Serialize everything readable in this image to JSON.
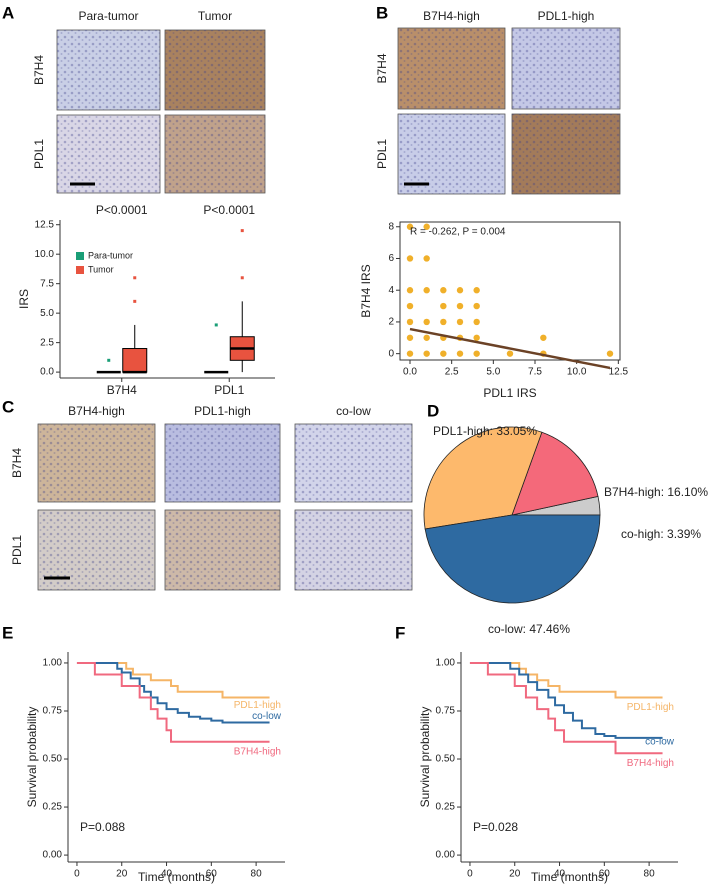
{
  "image_panels": [
    {
      "letter": "A",
      "columns": [
        "Para-tumor",
        "Tumor"
      ],
      "rows": [
        "B7H4",
        "PDL1"
      ]
    },
    {
      "letter": "B",
      "columns": [
        "B7H4-high",
        "PDL1-high"
      ],
      "rows": [
        "B7H4",
        "PDL1"
      ]
    },
    {
      "letter": "C",
      "columns": [
        "B7H4-high",
        "PDL1-high",
        "co-low"
      ],
      "rows": [
        "B7H4",
        "PDL1"
      ]
    }
  ],
  "chart_data": [
    {
      "type": "box",
      "y_label": "IRS",
      "annotations": [
        "P<0.0001",
        "P<0.0001"
      ],
      "categories": [
        "B7H4",
        "PDL1"
      ],
      "ylim": [
        -0.5,
        12.9
      ],
      "yticks": [
        {
          "value": 0,
          "label": "0.0"
        },
        2.5,
        {
          "value": 5,
          "label": "5.0"
        },
        7.5,
        {
          "value": 10,
          "label": "10.0"
        },
        12.5
      ],
      "series": [
        {
          "name": "Para-tumor",
          "color": "#1a9e77",
          "min": [
            0,
            0
          ],
          "q1": [
            0,
            0
          ],
          "median": [
            0,
            0
          ],
          "q3": [
            0,
            0
          ],
          "max": [
            0,
            0
          ],
          "outliers": [
            [
              1
            ],
            [
              4
            ]
          ]
        },
        {
          "name": "Tumor",
          "color": "#e8533f",
          "min": [
            0,
            0
          ],
          "q1": [
            0,
            1
          ],
          "median": [
            0,
            2
          ],
          "q3": [
            2,
            3
          ],
          "max": [
            4,
            6
          ],
          "outliers": [
            [
              6,
              8
            ],
            [
              8,
              12
            ]
          ]
        }
      ]
    },
    {
      "type": "scatter",
      "x_label": "PDL1 IRS",
      "y_label": "B7H4 IRS",
      "annotation": "R = -0.262,  P = 0.004",
      "color": "#f0b02a",
      "x": [
        0,
        1,
        0,
        1,
        0,
        1,
        2,
        3,
        4,
        0,
        2,
        3,
        4,
        0,
        1,
        2,
        3,
        4,
        0,
        1,
        2,
        3,
        4,
        8,
        0,
        1,
        2,
        3,
        4,
        6,
        8,
        12
      ],
      "values": [
        8,
        8,
        6,
        6,
        4,
        4,
        4,
        4,
        4,
        3,
        3,
        3,
        3,
        2,
        2,
        2,
        2,
        2,
        1,
        1,
        1,
        1,
        1,
        1,
        0,
        0,
        0,
        0,
        0,
        0,
        0,
        0
      ],
      "trend_line": {
        "x": [
          0,
          12
        ],
        "values": [
          1.55,
          -0.9
        ],
        "color": "#6b4226"
      },
      "xlim": [
        -0.6,
        12.6
      ],
      "ylim": [
        -0.4,
        8.3
      ],
      "xticks": [
        {
          "value": 0,
          "label": "0.0"
        },
        2.5,
        {
          "value": 5,
          "label": "5.0"
        },
        7.5,
        {
          "value": 10,
          "label": "10.0"
        },
        12.5
      ],
      "yticks": [
        0,
        2,
        4,
        6,
        8
      ]
    },
    {
      "type": "pie",
      "panel": "D",
      "values": [
        3.39,
        16.1,
        33.05,
        47.46
      ],
      "value_labels": [
        "co-high: 3.39%",
        "B7H4-high: 16.10%",
        "PDL1-high: 33.05%",
        "co-low: 47.46%"
      ],
      "colors": [
        "#cccccc",
        "#f4697a",
        "#fdb96c",
        "#2e6aa1"
      ]
    },
    {
      "type": "survival",
      "panel": "E",
      "x_label": "Time (months)",
      "y_label": "Survival probability",
      "annotation": "P=0.088",
      "xlim": [
        -4,
        92.9
      ],
      "ylim": [
        -0.036,
        1.057
      ],
      "xticks": [
        0,
        20,
        40,
        60,
        80
      ],
      "yticks": [
        {
          "value": 0,
          "label": "0.00"
        },
        0.25,
        {
          "value": 0.5,
          "label": "0.50"
        },
        0.75,
        {
          "value": 1,
          "label": "1.00"
        }
      ],
      "series": [
        {
          "name": "PDL1-high",
          "color": "#f5b567",
          "x": [
            0,
            22,
            25,
            33,
            42,
            45,
            65,
            86
          ],
          "values": [
            1,
            0.97,
            0.94,
            0.91,
            0.88,
            0.85,
            0.82,
            0.82
          ]
        },
        {
          "name": "co-low",
          "color": "#2e6aa1",
          "x": [
            0,
            18,
            20,
            24,
            28,
            30,
            33,
            36,
            40,
            45,
            50,
            55,
            60,
            65,
            86
          ],
          "values": [
            1,
            0.97,
            0.95,
            0.92,
            0.88,
            0.85,
            0.82,
            0.79,
            0.76,
            0.74,
            0.72,
            0.71,
            0.7,
            0.69,
            0.69
          ]
        },
        {
          "name": "B7H4-high",
          "color": "#f0697f",
          "x": [
            0,
            8,
            20,
            28,
            33,
            36,
            40,
            42,
            86
          ],
          "values": [
            1,
            0.94,
            0.88,
            0.82,
            0.76,
            0.71,
            0.65,
            0.59,
            0.59
          ]
        }
      ]
    },
    {
      "type": "survival",
      "panel": "F",
      "x_label": "Time (months)",
      "y_label": "Survival probability",
      "annotation": "P=0.028",
      "xlim": [
        -4,
        92.9
      ],
      "ylim": [
        -0.036,
        1.057
      ],
      "xticks": [
        0,
        20,
        40,
        60,
        80
      ],
      "yticks": [
        {
          "value": 0,
          "label": "0.00"
        },
        0.25,
        {
          "value": 0.5,
          "label": "0.50"
        },
        0.75,
        {
          "value": 1,
          "label": "1.00"
        }
      ],
      "series": [
        {
          "name": "PDL1-high",
          "color": "#f5b567",
          "x": [
            0,
            22,
            25,
            30,
            35,
            40,
            45,
            65,
            86
          ],
          "values": [
            1,
            0.97,
            0.94,
            0.91,
            0.88,
            0.85,
            0.85,
            0.82,
            0.82
          ]
        },
        {
          "name": "co-low",
          "color": "#2e6aa1",
          "x": [
            0,
            18,
            22,
            26,
            30,
            35,
            38,
            42,
            46,
            50,
            56,
            60,
            65,
            86
          ],
          "values": [
            1,
            0.97,
            0.94,
            0.9,
            0.86,
            0.82,
            0.78,
            0.74,
            0.7,
            0.66,
            0.63,
            0.62,
            0.61,
            0.61
          ]
        },
        {
          "name": "B7H4-high",
          "color": "#f0697f",
          "x": [
            0,
            8,
            20,
            25,
            30,
            35,
            38,
            42,
            65,
            86
          ],
          "values": [
            1,
            0.94,
            0.88,
            0.82,
            0.76,
            0.71,
            0.65,
            0.59,
            0.53,
            0.53
          ]
        }
      ]
    }
  ]
}
